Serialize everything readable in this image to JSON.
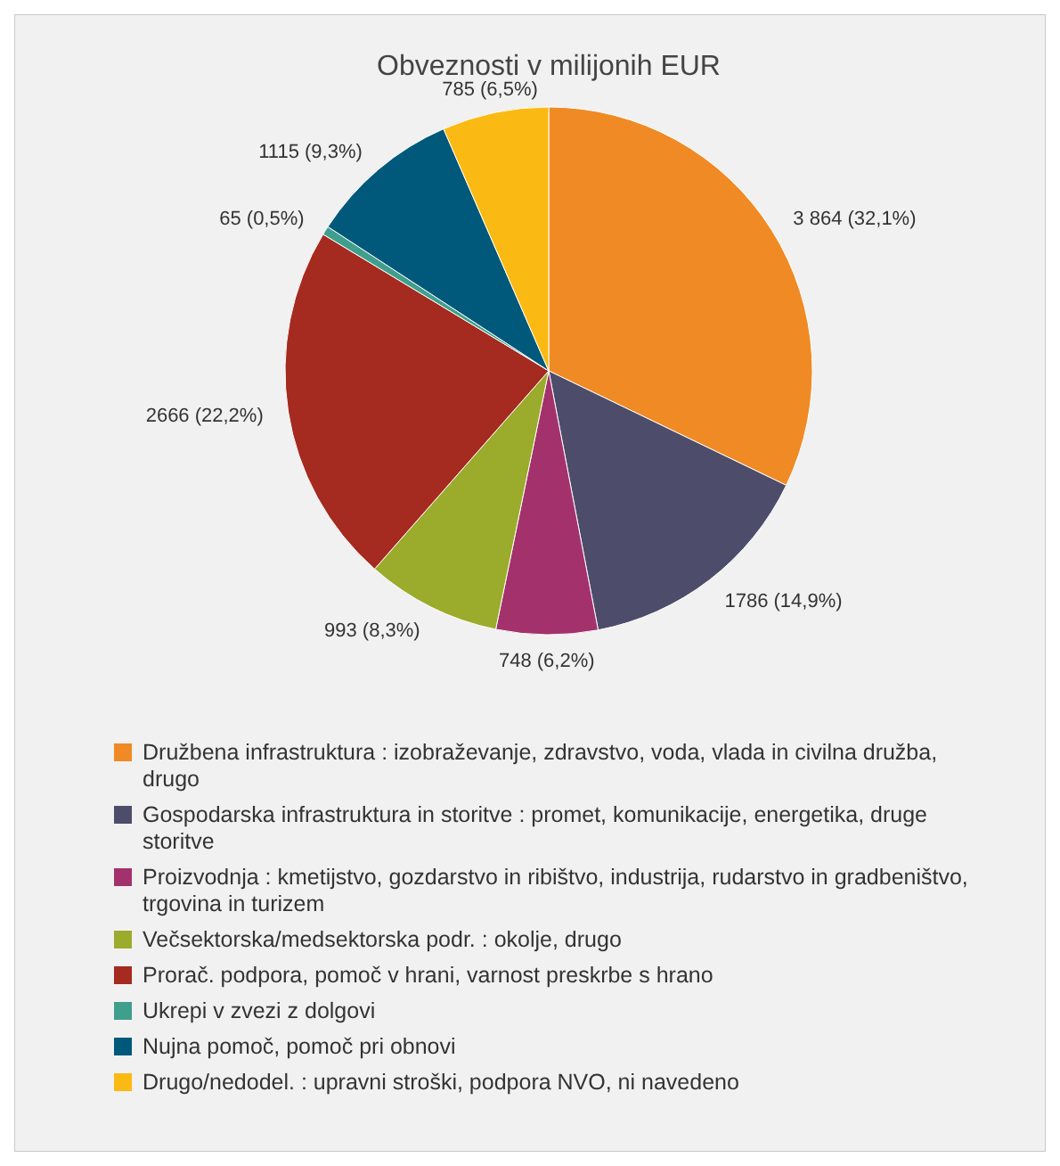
{
  "chart_data": {
    "type": "pie",
    "title": "Obveznosti v milijonih EUR",
    "categories": [
      "Družbena infrastruktura : izobraževanje, zdravstvo, voda, vlada in civilna družba, drugo",
      "Gospodarska infrastruktura in storitve : promet, komunikacije, energetika, druge storitve",
      "Proizvodnja : kmetijstvo, gozdarstvo in ribištvo, industrija, rudarstvo in gradbeništvo, trgovina in turizem",
      "Večsektorska/medsektorska podr. : okolje, drugo",
      "Prorač. podpora, pomoč v hrani, varnost preskrbe s hrano",
      "Ukrepi v zvezi z dolgovi",
      "Nujna pomoč, pomoč pri obnovi",
      "Drugo/nedodel. : upravni stroški, podpora NVO, ni navedeno"
    ],
    "values": [
      3864,
      1786,
      748,
      993,
      2666,
      65,
      1115,
      785
    ],
    "value_labels": [
      "3 864 (32,1%)",
      "1786 (14,9%)",
      "748 (6,2%)",
      "993 (8,3%)",
      "2666 (22,2%)",
      "65 (0,5%)",
      "1115 (9,3%)",
      "785 (6,5%)"
    ],
    "colors": [
      "#f08a24",
      "#4d4d6b",
      "#a3326c",
      "#9bab2b",
      "#a52a1f",
      "#3f9f8c",
      "#00597a",
      "#fbb913"
    ],
    "legend": "bottom"
  }
}
